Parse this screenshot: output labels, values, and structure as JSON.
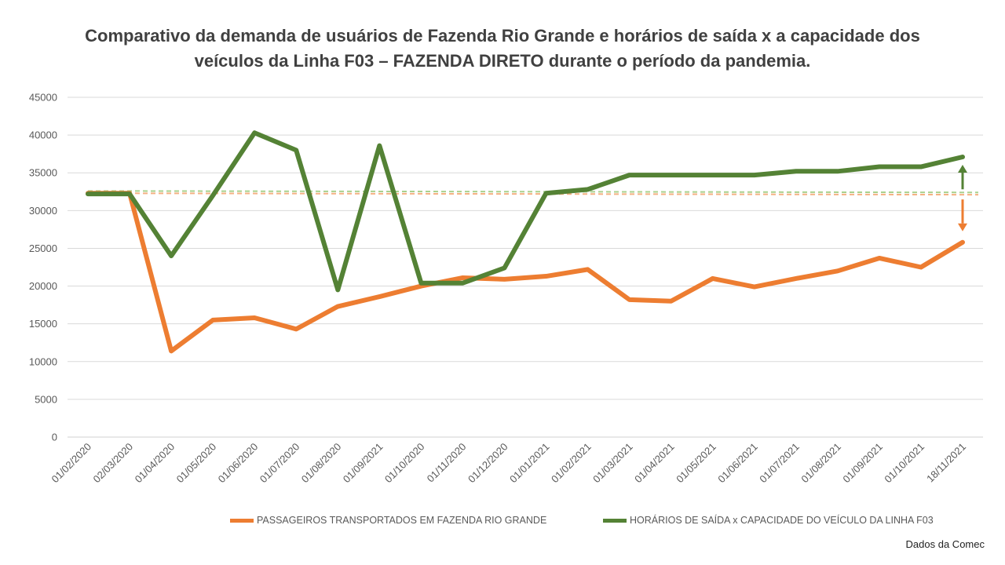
{
  "chart_data": {
    "type": "line",
    "title_line1": "Comparativo da demanda de usuários de Fazenda Rio Grande e horários de saída x a capacidade dos",
    "title_line2": "veículos da Linha F03 – FAZENDA DIRETO durante o período da pandemia.",
    "categories": [
      "01/02/2020",
      "02/03/2020",
      "01/04/2020",
      "01/05/2020",
      "01/06/2020",
      "01/07/2020",
      "01/08/2020",
      "01/09/2021",
      "01/10/2020",
      "01/11/2020",
      "01/12/2020",
      "01/01/2021",
      "01/02/2021",
      "01/03/2021",
      "01/04/2021",
      "01/05/2021",
      "01/06/2021",
      "01/07/2021",
      "01/08/2021",
      "01/09/2021",
      "01/10/2021",
      "18/11/2021"
    ],
    "ylim": [
      0,
      45000
    ],
    "y_ticks": [
      "0",
      "5000",
      "10000",
      "15000",
      "20000",
      "25000",
      "30000",
      "35000",
      "40000",
      "45000"
    ],
    "grid": true,
    "legend_position": "bottom",
    "series": [
      {
        "name": "PASSAGEIROS TRANSPORTADOS EM FAZENDA RIO GRANDE",
        "color": "#ED7D31",
        "values": [
          32300,
          32300,
          11400,
          15500,
          15800,
          14300,
          17300,
          18600,
          20000,
          21100,
          20900,
          21300,
          22200,
          18200,
          18000,
          21000,
          19900,
          21000,
          22000,
          23700,
          22500,
          25800
        ],
        "trend": [
          32300,
          32100
        ]
      },
      {
        "name": "HORÁRIOS DE SAÍDA x CAPACIDADE DO VEÍCULO DA LINHA F03",
        "color": "#548235",
        "values": [
          32200,
          32200,
          24000,
          32000,
          40300,
          38000,
          19500,
          38600,
          20400,
          20400,
          22400,
          32300,
          32800,
          34700,
          34700,
          34700,
          34700,
          35200,
          35200,
          35800,
          35800,
          37100
        ],
        "trend": [
          32600,
          32400
        ]
      }
    ],
    "arrow_up_color": "#548235",
    "arrow_down_color": "#ED7D31"
  },
  "source_note": "Dados da Comec"
}
